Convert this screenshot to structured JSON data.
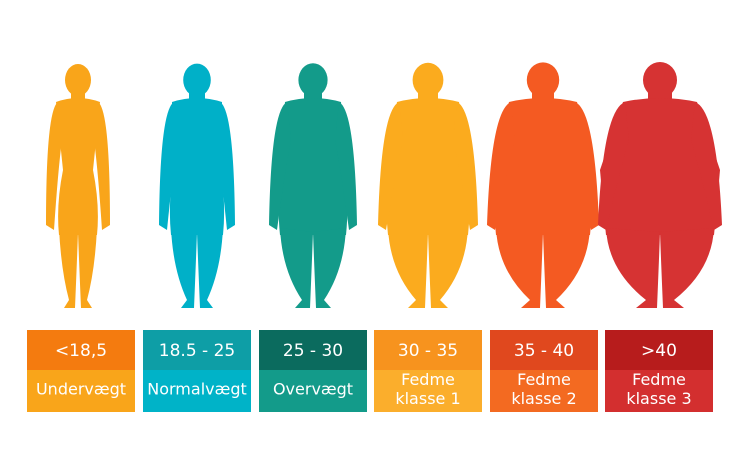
{
  "items": [
    {
      "range": "<18,5",
      "label": [
        "Undervægt"
      ],
      "figure_color": "#f9a51a",
      "top_color": "#f47b0f",
      "bottom_color": "#f9a51a"
    },
    {
      "range": "18.5 - 25",
      "label": [
        "Normalvægt"
      ],
      "figure_color": "#00b0c8",
      "top_color": "#0e9ea6",
      "bottom_color": "#00b3c8"
    },
    {
      "range": "25 - 30",
      "label": [
        "Overvægt"
      ],
      "figure_color": "#139b8a",
      "top_color": "#0b6b5e",
      "bottom_color": "#139b8a"
    },
    {
      "range": "30 - 35",
      "label": [
        "Fedme",
        "klasse 1"
      ],
      "figure_color": "#fbab1e",
      "top_color": "#f7931e",
      "bottom_color": "#fbae2c"
    },
    {
      "range": "35 - 40",
      "label": [
        "Fedme",
        "klasse 2"
      ],
      "figure_color": "#f45a22",
      "top_color": "#e0481e",
      "bottom_color": "#f36a21"
    },
    {
      "range": ">40",
      "label": [
        "Fedme",
        "klasse 3"
      ],
      "figure_color": "#d63333",
      "top_color": "#b71c1c",
      "bottom_color": "#d32f2f"
    }
  ]
}
